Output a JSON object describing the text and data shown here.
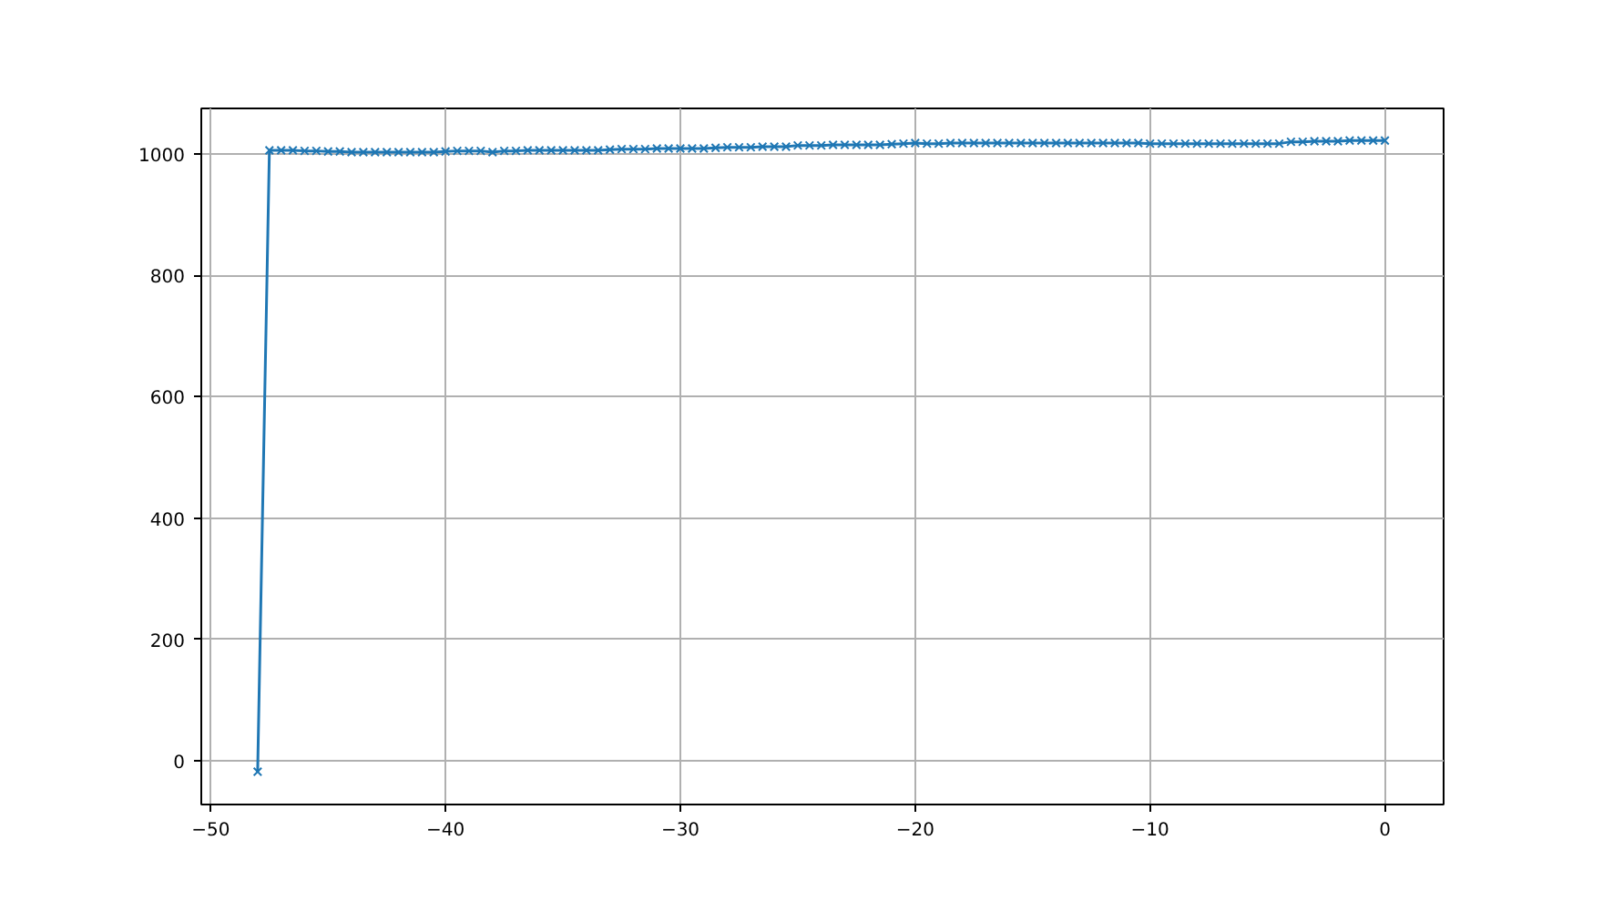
{
  "chart_data": {
    "type": "line",
    "marker": "cross",
    "grid": true,
    "line_style": "solid",
    "x": [
      -48,
      -47.5,
      -47,
      -46.5,
      -46,
      -45.5,
      -45,
      -44.5,
      -44,
      -43.5,
      -43,
      -42.5,
      -42,
      -41.5,
      -41,
      -40.5,
      -40,
      -39.5,
      -39,
      -38.5,
      -38,
      -37.5,
      -37,
      -36.5,
      -36,
      -35.5,
      -35,
      -34.5,
      -34,
      -33.5,
      -33,
      -32.5,
      -32,
      -31.5,
      -31,
      -30.5,
      -30,
      -29.5,
      -29,
      -28.5,
      -28,
      -27.5,
      -27,
      -26.5,
      -26,
      -25.5,
      -25,
      -24.5,
      -24,
      -23.5,
      -23,
      -22.5,
      -22,
      -21.5,
      -21,
      -20.5,
      -20,
      -19.5,
      -19,
      -18.5,
      -18,
      -17.5,
      -17,
      -16.5,
      -16,
      -15.5,
      -15,
      -14.5,
      -14,
      -13.5,
      -13,
      -12.5,
      -12,
      -11.5,
      -11,
      -10.5,
      -10,
      -9.5,
      -9,
      -8.5,
      -8,
      -7.5,
      -7,
      -6.5,
      -6,
      -5.5,
      -5,
      -4.5,
      -4,
      -3.5,
      -3,
      -2.5,
      -2,
      -1.5,
      -1,
      -0.5,
      0
    ],
    "series": [
      {
        "color": "#1f77b4",
        "values": [
          -18,
          1006,
          1006,
          1006,
          1005,
          1005,
          1004,
          1004,
          1003,
          1003,
          1003,
          1003,
          1003,
          1003,
          1003,
          1003,
          1004,
          1005,
          1005,
          1005,
          1003,
          1005,
          1005,
          1006,
          1006,
          1006,
          1006,
          1006,
          1006,
          1006,
          1007,
          1008,
          1008,
          1008,
          1009,
          1009,
          1009,
          1009,
          1009,
          1010,
          1011,
          1011,
          1011,
          1012,
          1012,
          1012,
          1014,
          1014,
          1014,
          1015,
          1015,
          1015,
          1015,
          1015,
          1016,
          1017,
          1018,
          1017,
          1017,
          1018,
          1018,
          1018,
          1018,
          1018,
          1018,
          1018,
          1018,
          1018,
          1018,
          1018,
          1018,
          1018,
          1018,
          1018,
          1018,
          1018,
          1017,
          1017,
          1017,
          1017,
          1017,
          1017,
          1017,
          1017,
          1017,
          1017,
          1017,
          1017,
          1020,
          1020,
          1021,
          1021,
          1021,
          1022,
          1022,
          1022,
          1022
        ]
      }
    ],
    "xlim": [
      -50.4,
      2.5
    ],
    "ylim": [
      -72,
      1075
    ],
    "xticks": [
      {
        "value": -50,
        "label": "−50"
      },
      {
        "value": -40,
        "label": "−40"
      },
      {
        "value": -30,
        "label": "−30"
      },
      {
        "value": -20,
        "label": "−20"
      },
      {
        "value": -10,
        "label": "−10"
      },
      0
    ],
    "yticks": [
      0,
      200,
      400,
      600,
      800,
      1000
    ]
  }
}
